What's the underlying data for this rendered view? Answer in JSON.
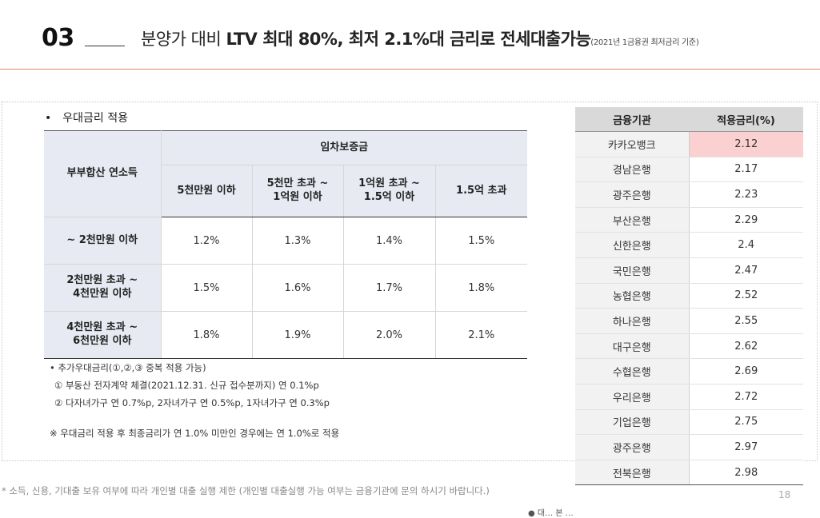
{
  "header": {
    "section_number": "03",
    "title_prefix": "분양가 대비 ",
    "title_bold": "LTV 최대 80%, 최저 2.1%대 금리로 전세대출가능",
    "title_note": "(2021년 1금융권 최저금리 기준)"
  },
  "left": {
    "bullet": "•",
    "section_label": "우대금리 적용",
    "table": {
      "row_header_label": "부부합산 연소득",
      "group_header_label": "임차보증금",
      "columns": [
        "5천만원 이하",
        "5천만 초과 ~\n1억원 이하",
        "1억원 초과 ~\n1.5억 이하",
        "1.5억 초과"
      ],
      "rows": [
        {
          "label": "~ 2천만원 이하",
          "values": [
            "1.2%",
            "1.3%",
            "1.4%",
            "1.5%"
          ]
        },
        {
          "label": "2천만원 초과 ~\n4천만원 이하",
          "values": [
            "1.5%",
            "1.6%",
            "1.7%",
            "1.8%"
          ]
        },
        {
          "label": "4천만원 초과 ~\n6천만원 이하",
          "values": [
            "1.8%",
            "1.9%",
            "2.0%",
            "2.1%"
          ]
        }
      ]
    },
    "notes": {
      "extra": "• 추가우대금리(①,②,③ 중복 적용 가능)",
      "item1": "① 부동산 전자계약 체결(2021.12.31. 신규 접수분까지) 연 0.1%p",
      "item2": "② 다자녀가구 연 0.7%p, 2자녀가구 연 0.5%p, 1자녀가구 연 0.3%p",
      "warning": "※ 우대금리 적용 후 최종금리가 연 1.0% 미만인 경우에는 연 1.0%로 적용"
    }
  },
  "bank_table": {
    "headers": {
      "institution": "금융기관",
      "rate": "적용금리(%)"
    },
    "rows": [
      {
        "name": "카카오뱅크",
        "rate": "2.12"
      },
      {
        "name": "경남은행",
        "rate": "2.17"
      },
      {
        "name": "광주은행",
        "rate": "2.23"
      },
      {
        "name": "부산은행",
        "rate": "2.29"
      },
      {
        "name": "신한은행",
        "rate": "2.4"
      },
      {
        "name": "국민은행",
        "rate": "2.47"
      },
      {
        "name": "농협은행",
        "rate": "2.52"
      },
      {
        "name": "하나은행",
        "rate": "2.55"
      },
      {
        "name": "대구은행",
        "rate": "2.62"
      },
      {
        "name": "수협은행",
        "rate": "2.69"
      },
      {
        "name": "우리은행",
        "rate": "2.72"
      },
      {
        "name": "기업은행",
        "rate": "2.75"
      },
      {
        "name": "광주은행",
        "rate": "2.97"
      },
      {
        "name": "전북은행",
        "rate": "2.98"
      }
    ],
    "highlight_color": "#fad0d0"
  },
  "footer": {
    "disclaimer": "* 소득, 신용, 기대출 보유 여부에 따라 개인별 대출 실행 제한 (개인별 대출실행 가능 여부는 금융기관에 문의 하시기 바랍니다.)",
    "page_number": "18",
    "cut_text": "● 대… 본 …",
    "accent_color": "#e8826a"
  }
}
